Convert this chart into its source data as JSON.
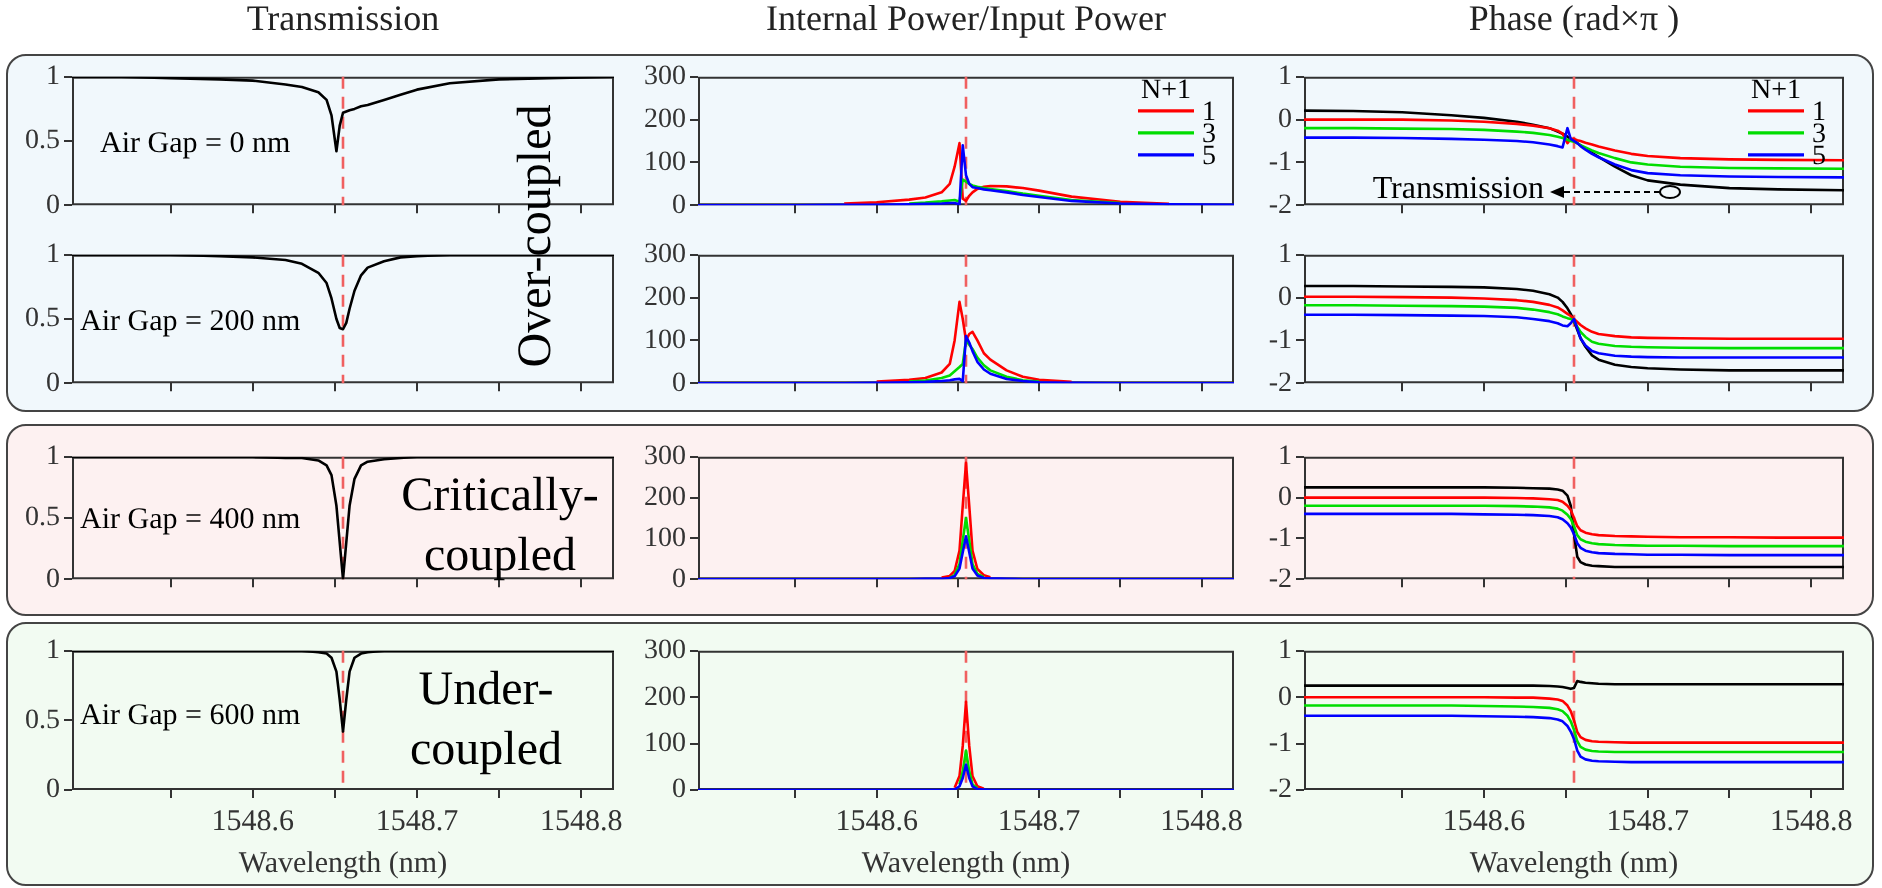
{
  "chart_data": [
    {
      "type": "line",
      "title": "Transmission",
      "annotations": [
        "Air Gap = 0 nm",
        "Over-coupled"
      ],
      "tick_labels": "y",
      "x": [
        1548.49,
        1548.52,
        1548.55,
        1548.58,
        1548.6,
        1548.62,
        1548.63,
        1548.64,
        1548.645,
        1548.648,
        1548.651,
        1548.653,
        1548.655,
        1548.657,
        1548.659,
        1548.662,
        1548.666,
        1548.67,
        1548.68,
        1548.69,
        1548.7,
        1548.72,
        1548.75,
        1548.78,
        1548.82
      ],
      "xlim": [
        1548.49,
        1548.82
      ],
      "xticks": [
        {
          "value": 1548.55,
          "label": null
        },
        1548.6,
        {
          "value": 1548.65,
          "label": null
        },
        1548.7,
        {
          "value": 1548.75,
          "label": null
        },
        1548.8
      ],
      "ylim": [
        0,
        1
      ],
      "yticks": [
        0,
        0.5,
        1
      ],
      "ref_lines": [
        {
          "axis": "x",
          "value": 1548.655,
          "color": "#f06060",
          "line_style": "dashed"
        }
      ],
      "series": [
        {
          "color": "#000000",
          "values": [
            1,
            1,
            0.99,
            0.98,
            0.97,
            0.94,
            0.92,
            0.88,
            0.82,
            0.7,
            0.42,
            0.62,
            0.72,
            0.73,
            0.74,
            0.75,
            0.77,
            0.78,
            0.82,
            0.86,
            0.9,
            0.95,
            0.98,
            0.99,
            1
          ]
        }
      ]
    },
    {
      "type": "line",
      "title": "Internal Power/Input Power",
      "legend": "top right",
      "legend_title": "N+1",
      "tick_labels": "y",
      "x": [
        1548.49,
        1548.52,
        1548.55,
        1548.58,
        1548.6,
        1548.62,
        1548.63,
        1548.64,
        1548.645,
        1548.648,
        1548.651,
        1548.653,
        1548.655,
        1548.657,
        1548.659,
        1548.662,
        1548.666,
        1548.67,
        1548.68,
        1548.69,
        1548.7,
        1548.72,
        1548.75,
        1548.78,
        1548.82
      ],
      "xlim": [
        1548.49,
        1548.82
      ],
      "xticks": [
        {
          "value": 1548.55,
          "label": null
        },
        1548.6,
        {
          "value": 1548.65,
          "label": null
        },
        1548.7,
        {
          "value": 1548.75,
          "label": null
        },
        1548.8
      ],
      "ylim": [
        0,
        300
      ],
      "yticks": [
        0,
        100,
        200,
        300
      ],
      "ref_lines": [
        {
          "axis": "x",
          "value": 1548.655,
          "color": "#f06060",
          "line_style": "dashed"
        }
      ],
      "series": [
        {
          "name": "1",
          "color": "#ff0000",
          "values": [
            null,
            null,
            null,
            4,
            7,
            13,
            18,
            30,
            50,
            90,
            145,
            15,
            10,
            22,
            30,
            38,
            43,
            45,
            44,
            40,
            34,
            20,
            8,
            3,
            null
          ]
        },
        {
          "name": "3",
          "color": "#00dd00",
          "values": [
            null,
            null,
            null,
            null,
            null,
            4,
            6,
            9,
            11,
            12,
            8,
            60,
            55,
            50,
            46,
            43,
            40,
            38,
            33,
            27,
            22,
            12,
            5,
            null,
            null
          ]
        },
        {
          "name": "5",
          "color": "#0000ff",
          "values": [
            0,
            0,
            0,
            1,
            1,
            2,
            3,
            4,
            5,
            5,
            2,
            140,
            70,
            50,
            42,
            40,
            37,
            35,
            30,
            24,
            19,
            10,
            4,
            2,
            1
          ]
        }
      ]
    },
    {
      "type": "line",
      "title": "Phase (rad×π )",
      "legend": "top right",
      "legend_title": "N+1",
      "annotations": [
        "Transmission"
      ],
      "tick_labels": "y",
      "x": [
        1548.49,
        1548.52,
        1548.55,
        1548.58,
        1548.6,
        1548.62,
        1548.63,
        1548.64,
        1548.645,
        1548.648,
        1548.651,
        1548.653,
        1548.655,
        1548.657,
        1548.659,
        1548.662,
        1548.666,
        1548.67,
        1548.68,
        1548.69,
        1548.7,
        1548.72,
        1548.75,
        1548.78,
        1548.82
      ],
      "xlim": [
        1548.49,
        1548.82
      ],
      "xticks": [
        {
          "value": 1548.55,
          "label": null
        },
        1548.6,
        {
          "value": 1548.65,
          "label": null
        },
        1548.7,
        {
          "value": 1548.75,
          "label": null
        },
        1548.8
      ],
      "ylim": [
        -2,
        1
      ],
      "yticks": [
        -2,
        -1,
        0,
        1
      ],
      "ref_lines": [
        {
          "axis": "x",
          "value": 1548.655,
          "color": "#f06060",
          "line_style": "dashed"
        }
      ],
      "series": [
        {
          "color": "#000000",
          "values": [
            0.21,
            0.2,
            0.17,
            0.1,
            0.04,
            -0.05,
            -0.12,
            -0.2,
            -0.28,
            -0.33,
            -0.4,
            -0.45,
            -0.5,
            -0.55,
            -0.6,
            -0.68,
            -0.78,
            -0.87,
            -1.1,
            -1.3,
            -1.42,
            -1.52,
            -1.6,
            -1.63,
            -1.65
          ]
        },
        {
          "name": "1",
          "color": "#ff0000",
          "values": [
            0,
            0,
            0,
            -0.02,
            -0.05,
            -0.1,
            -0.14,
            -0.2,
            -0.26,
            -0.33,
            -0.55,
            -0.45,
            -0.45,
            -0.48,
            -0.5,
            -0.54,
            -0.58,
            -0.63,
            -0.72,
            -0.8,
            -0.85,
            -0.9,
            -0.93,
            -0.94,
            -0.95
          ]
        },
        {
          "name": "3",
          "color": "#00dd00",
          "values": [
            -0.2,
            -0.2,
            -0.21,
            -0.22,
            -0.24,
            -0.28,
            -0.31,
            -0.36,
            -0.4,
            -0.43,
            -0.47,
            -0.5,
            -0.52,
            -0.55,
            -0.6,
            -0.65,
            -0.72,
            -0.78,
            -0.9,
            -1,
            -1.05,
            -1.1,
            -1.13,
            -1.14,
            -1.15
          ]
        },
        {
          "name": "5",
          "color": "#0000ff",
          "values": [
            -0.42,
            -0.42,
            -0.43,
            -0.45,
            -0.47,
            -0.5,
            -0.53,
            -0.58,
            -0.62,
            -0.65,
            -0.2,
            -0.45,
            -0.5,
            -0.55,
            -0.62,
            -0.7,
            -0.8,
            -0.88,
            -1.05,
            -1.18,
            -1.25,
            -1.3,
            -1.33,
            -1.34,
            -1.35
          ]
        }
      ]
    },
    {
      "type": "line",
      "annotations": [
        "Air Gap = 200 nm"
      ],
      "tick_labels": "y",
      "x": [
        1548.49,
        1548.52,
        1548.55,
        1548.58,
        1548.6,
        1548.62,
        1548.63,
        1548.64,
        1548.645,
        1548.648,
        1548.651,
        1548.653,
        1548.655,
        1548.657,
        1548.659,
        1548.662,
        1548.666,
        1548.67,
        1548.68,
        1548.69,
        1548.7,
        1548.72,
        1548.75,
        1548.78,
        1548.82
      ],
      "xlim": [
        1548.49,
        1548.82
      ],
      "xticks": [
        {
          "value": 1548.55,
          "label": null
        },
        1548.6,
        {
          "value": 1548.65,
          "label": null
        },
        1548.7,
        {
          "value": 1548.75,
          "label": null
        },
        1548.8
      ],
      "ylim": [
        0,
        1
      ],
      "yticks": [
        0,
        0.5,
        1
      ],
      "ref_lines": [
        {
          "axis": "x",
          "value": 1548.655,
          "color": "#f06060",
          "line_style": "dashed"
        }
      ],
      "series": [
        {
          "color": "#000000",
          "values": [
            1,
            1,
            1,
            0.99,
            0.98,
            0.96,
            0.93,
            0.86,
            0.78,
            0.66,
            0.5,
            0.43,
            0.42,
            0.47,
            0.58,
            0.72,
            0.84,
            0.9,
            0.95,
            0.98,
            0.99,
            1,
            1,
            1,
            1
          ]
        }
      ]
    },
    {
      "type": "line",
      "tick_labels": "y",
      "x": [
        1548.49,
        1548.52,
        1548.55,
        1548.58,
        1548.6,
        1548.62,
        1548.63,
        1548.64,
        1548.645,
        1548.648,
        1548.651,
        1548.653,
        1548.655,
        1548.657,
        1548.659,
        1548.662,
        1548.666,
        1548.67,
        1548.68,
        1548.69,
        1548.7,
        1548.72,
        1548.75,
        1548.78,
        1548.82
      ],
      "xlim": [
        1548.49,
        1548.82
      ],
      "xticks": [
        {
          "value": 1548.55,
          "label": null
        },
        1548.6,
        {
          "value": 1548.65,
          "label": null
        },
        1548.7,
        {
          "value": 1548.75,
          "label": null
        },
        1548.8
      ],
      "ylim": [
        0,
        300
      ],
      "yticks": [
        0,
        100,
        200,
        300
      ],
      "ref_lines": [
        {
          "axis": "x",
          "value": 1548.655,
          "color": "#f06060",
          "line_style": "dashed"
        }
      ],
      "series": [
        {
          "color": "#ff0000",
          "values": [
            null,
            null,
            null,
            null,
            4,
            8,
            12,
            25,
            45,
            100,
            190,
            150,
            100,
            115,
            120,
            100,
            70,
            55,
            30,
            15,
            8,
            3,
            null,
            null,
            null
          ]
        },
        {
          "color": "#00dd00",
          "values": [
            null,
            null,
            null,
            null,
            null,
            4,
            6,
            12,
            18,
            28,
            38,
            45,
            100,
            90,
            80,
            60,
            42,
            30,
            15,
            7,
            4,
            null,
            null,
            null,
            null
          ]
        },
        {
          "color": "#0000ff",
          "values": [
            0,
            0,
            0,
            0,
            1,
            2,
            3,
            5,
            7,
            9,
            10,
            5,
            110,
            95,
            75,
            50,
            32,
            22,
            10,
            5,
            2,
            1,
            0,
            0,
            0
          ]
        }
      ]
    },
    {
      "type": "line",
      "tick_labels": "y",
      "x": [
        1548.49,
        1548.52,
        1548.55,
        1548.58,
        1548.6,
        1548.62,
        1548.63,
        1548.64,
        1548.645,
        1548.648,
        1548.651,
        1548.653,
        1548.655,
        1548.657,
        1548.659,
        1548.662,
        1548.666,
        1548.67,
        1548.68,
        1548.69,
        1548.7,
        1548.72,
        1548.75,
        1548.78,
        1548.82
      ],
      "xlim": [
        1548.49,
        1548.82
      ],
      "xticks": [
        {
          "value": 1548.55,
          "label": null
        },
        1548.6,
        {
          "value": 1548.65,
          "label": null
        },
        1548.7,
        {
          "value": 1548.75,
          "label": null
        },
        1548.8
      ],
      "ylim": [
        -2,
        1
      ],
      "yticks": [
        -2,
        -1,
        0,
        1
      ],
      "ref_lines": [
        {
          "axis": "x",
          "value": 1548.655,
          "color": "#f06060",
          "line_style": "dashed"
        }
      ],
      "series": [
        {
          "color": "#000000",
          "values": [
            0.27,
            0.27,
            0.26,
            0.25,
            0.24,
            0.2,
            0.16,
            0.08,
            0,
            -0.1,
            -0.25,
            -0.38,
            -0.55,
            -0.75,
            -0.95,
            -1.15,
            -1.35,
            -1.45,
            -1.57,
            -1.62,
            -1.65,
            -1.68,
            -1.7,
            -1.7,
            -1.7
          ]
        },
        {
          "color": "#ff0000",
          "values": [
            0.02,
            0.02,
            0.01,
            0,
            -0.02,
            -0.06,
            -0.1,
            -0.17,
            -0.23,
            -0.3,
            -0.38,
            -0.43,
            -0.5,
            -0.57,
            -0.64,
            -0.72,
            -0.8,
            -0.85,
            -0.9,
            -0.93,
            -0.94,
            -0.95,
            -0.96,
            -0.96,
            -0.96
          ]
        },
        {
          "color": "#00dd00",
          "values": [
            -0.18,
            -0.18,
            -0.19,
            -0.2,
            -0.21,
            -0.24,
            -0.28,
            -0.34,
            -0.39,
            -0.44,
            -0.48,
            -0.5,
            -0.55,
            -0.68,
            -0.8,
            -0.92,
            -1.03,
            -1.08,
            -1.13,
            -1.15,
            -1.16,
            -1.17,
            -1.18,
            -1.18,
            -1.18
          ]
        },
        {
          "color": "#0000ff",
          "values": [
            -0.4,
            -0.4,
            -0.41,
            -0.42,
            -0.43,
            -0.46,
            -0.5,
            -0.55,
            -0.6,
            -0.65,
            -0.67,
            -0.6,
            -0.5,
            -0.72,
            -0.95,
            -1.12,
            -1.25,
            -1.3,
            -1.36,
            -1.38,
            -1.39,
            -1.4,
            -1.4,
            -1.4,
            -1.4
          ]
        }
      ]
    },
    {
      "type": "line",
      "annotations": [
        "Air Gap = 400 nm",
        "Critically-coupled"
      ],
      "tick_labels": "y",
      "x": [
        1548.49,
        1548.52,
        1548.55,
        1548.58,
        1548.6,
        1548.62,
        1548.63,
        1548.64,
        1548.645,
        1548.648,
        1548.651,
        1548.653,
        1548.655,
        1548.657,
        1548.659,
        1548.662,
        1548.666,
        1548.67,
        1548.68,
        1548.69,
        1548.7,
        1548.72,
        1548.75,
        1548.78,
        1548.82
      ],
      "xlim": [
        1548.49,
        1548.82
      ],
      "xticks": [
        {
          "value": 1548.55,
          "label": null
        },
        1548.6,
        {
          "value": 1548.65,
          "label": null
        },
        1548.7,
        {
          "value": 1548.75,
          "label": null
        },
        1548.8
      ],
      "ylim": [
        0,
        1
      ],
      "yticks": [
        0,
        0.5,
        1
      ],
      "ref_lines": [
        {
          "axis": "x",
          "value": 1548.655,
          "color": "#f06060",
          "line_style": "dashed"
        }
      ],
      "series": [
        {
          "color": "#000000",
          "values": [
            1,
            1,
            1,
            1,
            1,
            0.99,
            0.99,
            0.97,
            0.93,
            0.85,
            0.6,
            0.3,
            0,
            0.3,
            0.6,
            0.82,
            0.93,
            0.96,
            0.98,
            0.99,
            1,
            1,
            1,
            1,
            1
          ]
        }
      ]
    },
    {
      "type": "line",
      "tick_labels": "y",
      "x": [
        1548.49,
        1548.52,
        1548.55,
        1548.58,
        1548.6,
        1548.62,
        1548.63,
        1548.64,
        1548.645,
        1548.648,
        1548.651,
        1548.653,
        1548.655,
        1548.657,
        1548.659,
        1548.662,
        1548.666,
        1548.67,
        1548.68,
        1548.69,
        1548.7,
        1548.72,
        1548.75,
        1548.78,
        1548.82
      ],
      "xlim": [
        1548.49,
        1548.82
      ],
      "xticks": [
        {
          "value": 1548.55,
          "label": null
        },
        1548.6,
        {
          "value": 1548.65,
          "label": null
        },
        1548.7,
        {
          "value": 1548.75,
          "label": null
        },
        1548.8
      ],
      "ylim": [
        0,
        300
      ],
      "yticks": [
        0,
        100,
        200,
        300
      ],
      "ref_lines": [
        {
          "axis": "x",
          "value": 1548.655,
          "color": "#f06060",
          "line_style": "dashed"
        }
      ],
      "series": [
        {
          "color": "#ff0000",
          "values": [
            null,
            null,
            null,
            null,
            null,
            null,
            null,
            4,
            8,
            20,
            70,
            180,
            285,
            180,
            70,
            25,
            10,
            5,
            null,
            null,
            null,
            null,
            null,
            null,
            null
          ]
        },
        {
          "color": "#00dd00",
          "values": [
            null,
            null,
            null,
            null,
            null,
            null,
            null,
            null,
            4,
            10,
            37,
            95,
            150,
            95,
            37,
            13,
            5,
            null,
            null,
            null,
            null,
            null,
            null,
            null,
            null
          ]
        },
        {
          "color": "#0000ff",
          "values": [
            0,
            0,
            0,
            0,
            0,
            0,
            1,
            1,
            3,
            7,
            26,
            66,
            105,
            66,
            26,
            9,
            3,
            2,
            1,
            0,
            0,
            0,
            0,
            0,
            0
          ]
        }
      ]
    },
    {
      "type": "line",
      "tick_labels": "y",
      "x": [
        1548.49,
        1548.52,
        1548.55,
        1548.58,
        1548.6,
        1548.62,
        1548.63,
        1548.64,
        1548.645,
        1548.648,
        1548.651,
        1548.653,
        1548.655,
        1548.657,
        1548.659,
        1548.662,
        1548.666,
        1548.67,
        1548.68,
        1548.69,
        1548.7,
        1548.72,
        1548.75,
        1548.78,
        1548.82
      ],
      "xlim": [
        1548.49,
        1548.82
      ],
      "xticks": [
        {
          "value": 1548.55,
          "label": null
        },
        1548.6,
        {
          "value": 1548.65,
          "label": null
        },
        1548.7,
        {
          "value": 1548.75,
          "label": null
        },
        1548.8
      ],
      "ylim": [
        -2,
        1
      ],
      "yticks": [
        -2,
        -1,
        0,
        1
      ],
      "ref_lines": [
        {
          "axis": "x",
          "value": 1548.655,
          "color": "#f06060",
          "line_style": "dashed"
        }
      ],
      "series": [
        {
          "color": "#000000",
          "values": [
            0.25,
            0.25,
            0.25,
            0.25,
            0.25,
            0.24,
            0.23,
            0.22,
            0.2,
            0.17,
            0.05,
            -0.2,
            -0.9,
            -1.45,
            -1.58,
            -1.64,
            -1.67,
            -1.68,
            -1.7,
            -1.7,
            -1.7,
            -1.7,
            -1.7,
            -1.7,
            -1.7
          ]
        },
        {
          "color": "#ff0000",
          "values": [
            0,
            0,
            0,
            0,
            0,
            -0.01,
            -0.02,
            -0.04,
            -0.06,
            -0.1,
            -0.2,
            -0.3,
            -0.5,
            -0.7,
            -0.8,
            -0.86,
            -0.9,
            -0.92,
            -0.94,
            -0.95,
            -0.96,
            -0.97,
            -0.97,
            -0.98,
            -0.98
          ]
        },
        {
          "color": "#00dd00",
          "values": [
            -0.2,
            -0.2,
            -0.2,
            -0.2,
            -0.2,
            -0.21,
            -0.22,
            -0.24,
            -0.27,
            -0.32,
            -0.42,
            -0.52,
            -0.7,
            -0.92,
            -1.02,
            -1.08,
            -1.12,
            -1.14,
            -1.16,
            -1.17,
            -1.18,
            -1.18,
            -1.19,
            -1.19,
            -1.19
          ]
        },
        {
          "color": "#0000ff",
          "values": [
            -0.4,
            -0.4,
            -0.4,
            -0.4,
            -0.41,
            -0.42,
            -0.43,
            -0.45,
            -0.48,
            -0.53,
            -0.63,
            -0.73,
            -0.9,
            -1.12,
            -1.23,
            -1.3,
            -1.34,
            -1.36,
            -1.38,
            -1.39,
            -1.4,
            -1.4,
            -1.41,
            -1.41,
            -1.41
          ]
        }
      ]
    },
    {
      "type": "line",
      "xlabel": "Wavelength (nm)",
      "annotations": [
        "Air Gap = 600 nm",
        "Under-coupled"
      ],
      "x": [
        1548.49,
        1548.52,
        1548.55,
        1548.58,
        1548.6,
        1548.62,
        1548.63,
        1548.64,
        1548.645,
        1548.648,
        1548.651,
        1548.653,
        1548.655,
        1548.657,
        1548.659,
        1548.662,
        1548.666,
        1548.67,
        1548.68,
        1548.69,
        1548.7,
        1548.72,
        1548.75,
        1548.78,
        1548.82
      ],
      "xlim": [
        1548.49,
        1548.82
      ],
      "xticks": [
        {
          "value": 1548.55,
          "label": null
        },
        1548.6,
        {
          "value": 1548.65,
          "label": null
        },
        1548.7,
        {
          "value": 1548.75,
          "label": null
        },
        1548.8
      ],
      "ylim": [
        0,
        1
      ],
      "yticks": [
        0,
        0.5,
        1
      ],
      "ref_lines": [
        {
          "axis": "x",
          "value": 1548.655,
          "color": "#f06060",
          "line_style": "dashed"
        }
      ],
      "series": [
        {
          "color": "#000000",
          "values": [
            1,
            1,
            1,
            1,
            1,
            1,
            1,
            0.99,
            0.98,
            0.95,
            0.85,
            0.65,
            0.42,
            0.65,
            0.85,
            0.95,
            0.98,
            0.99,
            1,
            1,
            1,
            1,
            1,
            1,
            1
          ]
        }
      ]
    },
    {
      "type": "line",
      "xlabel": "Wavelength (nm)",
      "x": [
        1548.49,
        1548.52,
        1548.55,
        1548.58,
        1548.6,
        1548.62,
        1548.63,
        1548.64,
        1548.645,
        1548.648,
        1548.651,
        1548.653,
        1548.655,
        1548.657,
        1548.659,
        1548.662,
        1548.666,
        1548.67,
        1548.68,
        1548.69,
        1548.7,
        1548.72,
        1548.75,
        1548.78,
        1548.82
      ],
      "xlim": [
        1548.49,
        1548.82
      ],
      "xticks": [
        {
          "value": 1548.55,
          "label": null
        },
        1548.6,
        {
          "value": 1548.65,
          "label": null
        },
        1548.7,
        {
          "value": 1548.75,
          "label": null
        },
        1548.8
      ],
      "ylim": [
        0,
        300
      ],
      "yticks": [
        0,
        100,
        200,
        300
      ],
      "ref_lines": [
        {
          "axis": "x",
          "value": 1548.655,
          "color": "#f06060",
          "line_style": "dashed"
        }
      ],
      "series": [
        {
          "color": "#ff0000",
          "values": [
            null,
            null,
            null,
            null,
            null,
            null,
            null,
            null,
            null,
            5,
            30,
            95,
            190,
            95,
            30,
            8,
            3,
            null,
            null,
            null,
            null,
            null,
            null,
            null,
            null
          ]
        },
        {
          "color": "#00dd00",
          "values": [
            null,
            null,
            null,
            null,
            null,
            null,
            null,
            null,
            null,
            null,
            12,
            40,
            85,
            40,
            12,
            4,
            null,
            null,
            null,
            null,
            null,
            null,
            null,
            null,
            null
          ]
        },
        {
          "color": "#0000ff",
          "values": [
            0,
            0,
            0,
            0,
            0,
            0,
            0,
            0,
            1,
            1,
            8,
            26,
            55,
            26,
            8,
            2,
            1,
            0,
            0,
            0,
            0,
            0,
            0,
            0,
            0
          ]
        }
      ]
    },
    {
      "type": "line",
      "xlabel": "Wavelength (nm)",
      "x": [
        1548.49,
        1548.52,
        1548.55,
        1548.58,
        1548.6,
        1548.62,
        1548.63,
        1548.64,
        1548.645,
        1548.648,
        1548.651,
        1548.653,
        1548.655,
        1548.657,
        1548.659,
        1548.662,
        1548.666,
        1548.67,
        1548.68,
        1548.69,
        1548.7,
        1548.72,
        1548.75,
        1548.78,
        1548.82
      ],
      "xlim": [
        1548.49,
        1548.82
      ],
      "xticks": [
        {
          "value": 1548.55,
          "label": null
        },
        1548.6,
        {
          "value": 1548.65,
          "label": null
        },
        1548.7,
        {
          "value": 1548.75,
          "label": null
        },
        1548.8
      ],
      "ylim": [
        -2,
        1
      ],
      "yticks": [
        -2,
        -1,
        0,
        1
      ],
      "ref_lines": [
        {
          "axis": "x",
          "value": 1548.655,
          "color": "#f06060",
          "line_style": "dashed"
        }
      ],
      "series": [
        {
          "color": "#000000",
          "values": [
            0.25,
            0.25,
            0.25,
            0.25,
            0.25,
            0.25,
            0.25,
            0.24,
            0.23,
            0.22,
            0.2,
            0.18,
            0.2,
            0.35,
            0.33,
            0.31,
            0.3,
            0.29,
            0.28,
            0.28,
            0.28,
            0.28,
            0.28,
            0.28,
            0.28
          ]
        },
        {
          "color": "#ff0000",
          "values": [
            0,
            0,
            0,
            0,
            0,
            -0.01,
            -0.01,
            -0.03,
            -0.05,
            -0.08,
            -0.18,
            -0.3,
            -0.5,
            -0.75,
            -0.86,
            -0.92,
            -0.95,
            -0.96,
            -0.97,
            -0.98,
            -0.98,
            -0.98,
            -0.98,
            -0.98,
            -0.98
          ]
        },
        {
          "color": "#00dd00",
          "values": [
            -0.18,
            -0.18,
            -0.18,
            -0.18,
            -0.19,
            -0.2,
            -0.21,
            -0.23,
            -0.26,
            -0.3,
            -0.4,
            -0.52,
            -0.7,
            -0.95,
            -1.07,
            -1.13,
            -1.16,
            -1.17,
            -1.18,
            -1.18,
            -1.18,
            -1.18,
            -1.18,
            -1.18,
            -1.18
          ]
        },
        {
          "color": "#0000ff",
          "values": [
            -0.4,
            -0.4,
            -0.4,
            -0.4,
            -0.41,
            -0.42,
            -0.43,
            -0.45,
            -0.48,
            -0.52,
            -0.62,
            -0.74,
            -0.9,
            -1.15,
            -1.28,
            -1.34,
            -1.37,
            -1.38,
            -1.39,
            -1.4,
            -1.4,
            -1.4,
            -1.4,
            -1.4,
            -1.4
          ]
        }
      ]
    }
  ]
}
